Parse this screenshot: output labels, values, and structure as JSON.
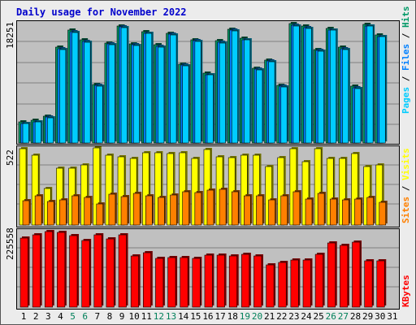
{
  "chart_data": {
    "type": "bar",
    "title": "Daily usage for November 2022",
    "categories": [
      "1",
      "2",
      "3",
      "4",
      "5",
      "6",
      "7",
      "8",
      "9",
      "10",
      "11",
      "12",
      "13",
      "14",
      "15",
      "16",
      "17",
      "18",
      "19",
      "20",
      "21",
      "22",
      "23",
      "24",
      "25",
      "26",
      "27",
      "28",
      "29",
      "30",
      "31"
    ],
    "weekend_days": [
      "5",
      "6",
      "12",
      "13",
      "19",
      "20",
      "26",
      "27"
    ],
    "panels": {
      "top": {
        "max_label": "18251",
        "ylim": [
          0,
          18251
        ],
        "right_labels": {
          "pages": "Pages",
          "files": "Files",
          "hits": "Hits",
          "sep": " / "
        },
        "series": [
          {
            "name": "Hits",
            "color": "#009966",
            "values": [
              3200,
              3450,
              4100,
              14500,
              17100,
              15600,
              8900,
              15200,
              17800,
              15100,
              16900,
              14900,
              16700,
              12000,
              15700,
              10600,
              15500,
              17300,
              15900,
              11400,
              12600,
              8800,
              18100,
              17700,
              14200,
              17400,
              14500,
              8600,
              18000,
              16400,
              0
            ]
          },
          {
            "name": "Files",
            "color": "#0080ff",
            "values": [
              3000,
              3250,
              3900,
              14300,
              16900,
              15400,
              8700,
              15000,
              17600,
              14900,
              16700,
              14700,
              16500,
              11800,
              15500,
              10400,
              15300,
              17100,
              15700,
              11200,
              12400,
              8600,
              17900,
              17500,
              14000,
              17200,
              14300,
              8400,
              17800,
              16200,
              0
            ]
          },
          {
            "name": "Pages",
            "color": "#00ccff",
            "values": [
              2900,
              3150,
              3800,
              14200,
              16800,
              15300,
              8600,
              14900,
              17500,
              14800,
              16600,
              14600,
              16400,
              11700,
              15400,
              10300,
              15200,
              17000,
              15600,
              11100,
              12300,
              8500,
              17800,
              17400,
              13900,
              17100,
              14200,
              8300,
              17700,
              16100,
              0
            ]
          }
        ]
      },
      "middle": {
        "max_label": "522",
        "ylim": [
          0,
          522
        ],
        "right_labels": {
          "sites": "Sites",
          "visits": "Visits",
          "sep": " / "
        },
        "series": [
          {
            "name": "Visits",
            "color": "#ffff00",
            "values": [
              522,
              480,
              250,
              390,
              390,
              410,
              525,
              480,
              465,
              455,
              495,
              495,
              490,
              495,
              455,
              515,
              465,
              460,
              480,
              475,
              400,
              460,
              520,
              435,
              520,
              455,
              455,
              490,
              400,
              410,
              0
            ]
          },
          {
            "name": "Sites",
            "color": "#ff8000",
            "values": [
              165,
              200,
              160,
              170,
              200,
              190,
              145,
              210,
              195,
              215,
              200,
              190,
              205,
              230,
              220,
              240,
              245,
              230,
              200,
              200,
              170,
              200,
              225,
              175,
              215,
              175,
              170,
              175,
              190,
              155,
              0
            ]
          }
        ]
      },
      "bottom": {
        "max_label": "225558",
        "ylim": [
          0,
          225558
        ],
        "right_labels": {
          "kbytes": "KBytes"
        },
        "series": [
          {
            "name": "KBytes",
            "color": "#ff0000",
            "values": [
              205000,
              214000,
              222000,
              221000,
              212000,
              197000,
              214000,
              202000,
              213000,
              150000,
              160000,
              143000,
              147000,
              146000,
              145000,
              153000,
              153000,
              150000,
              157000,
              152000,
              124000,
              132000,
              139000,
              140000,
              155000,
              190000,
              183000,
              193000,
              136000,
              137000,
              0
            ]
          }
        ]
      }
    }
  }
}
